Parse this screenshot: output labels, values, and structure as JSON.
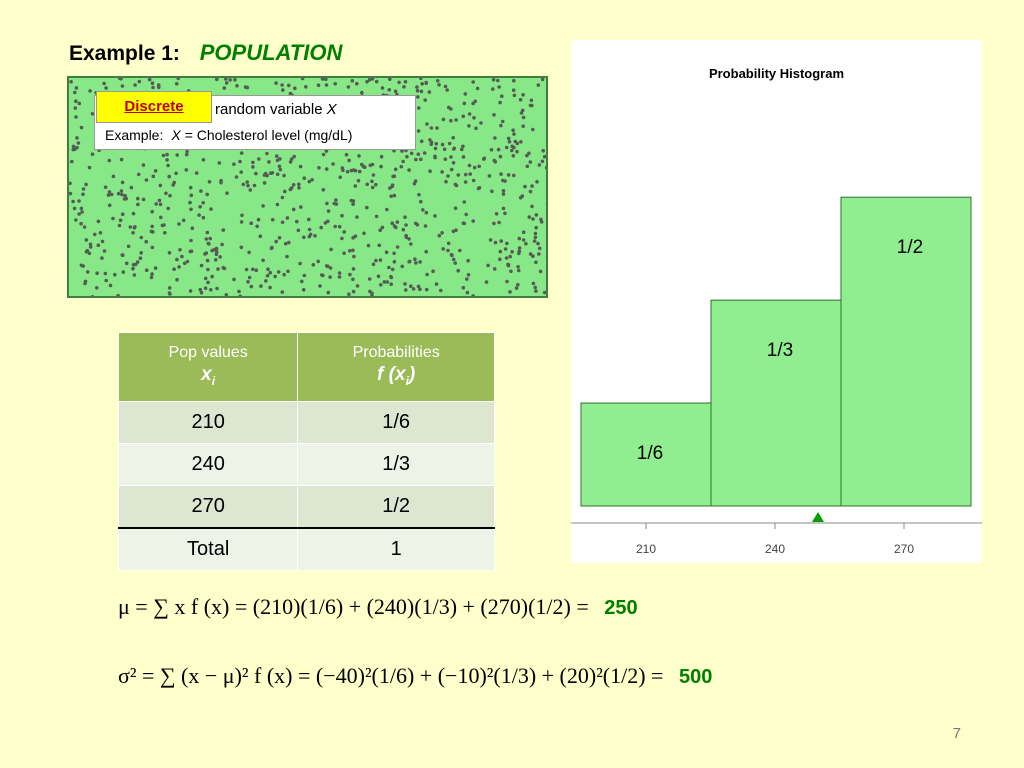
{
  "slide": {
    "title_prefix": "Example 1:",
    "title_main": "POPULATION",
    "discrete_label": "Discrete",
    "rv_text": "random variable",
    "rv_symbol": "X",
    "example_prefix": "Example:",
    "example_symbol": "X",
    "example_rest": "= Cholesterol level (mg/dL)",
    "page_number": "7"
  },
  "table": {
    "col1_header": "Pop values",
    "col1_symbol": "x",
    "col1_sub": "i",
    "col2_header": "Probabilities",
    "col2_symbol_f": "f",
    "col2_symbol_x": "x",
    "col2_sub": "i",
    "rows": [
      {
        "x": "210",
        "p": "1/6"
      },
      {
        "x": "240",
        "p": "1/3"
      },
      {
        "x": "270",
        "p": "1/2"
      }
    ],
    "total_label": "Total",
    "total_value": "1"
  },
  "formulas": {
    "mean_lhs": "μ = ∑ x f (x)",
    "mean_rhs": "= (210)(1/6) + (240)(1/3) + (270)(1/2) =",
    "mean_result": "250",
    "var_lhs": "σ² = ∑ (x − μ)² f (x)",
    "var_rhs": "= (−40)²(1/6) + (−10)²(1/3) + (20)²(1/2) =",
    "var_result": "500"
  },
  "colors": {
    "bar_fill": "#90ee90",
    "bar_stroke": "#2f6f2f",
    "marker": "#00a000",
    "accent_green": "#008000",
    "header_green": "#9bbb59"
  },
  "chart_data": {
    "type": "bar",
    "title": "Probability Histogram",
    "categories": [
      "210",
      "240",
      "270"
    ],
    "values": [
      0.1667,
      0.3333,
      0.5
    ],
    "bar_labels": [
      "1/6",
      "1/3",
      "1/2"
    ],
    "ylim": [
      0,
      0.625
    ],
    "marker_x": 250,
    "grid": false
  }
}
